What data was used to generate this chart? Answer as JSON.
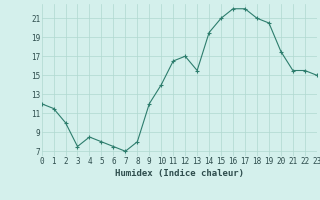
{
  "x": [
    0,
    1,
    2,
    3,
    4,
    5,
    6,
    7,
    8,
    9,
    10,
    11,
    12,
    13,
    14,
    15,
    16,
    17,
    18,
    19,
    20,
    21,
    22,
    23
  ],
  "y": [
    12,
    11.5,
    10,
    7.5,
    8.5,
    8,
    7.5,
    7,
    8,
    12,
    14,
    16.5,
    17,
    15.5,
    19.5,
    21,
    22,
    22,
    21,
    20.5,
    17.5,
    15.5,
    15.5,
    15
  ],
  "xlabel": "Humidex (Indice chaleur)",
  "xlim": [
    0,
    23
  ],
  "ylim": [
    6.5,
    22.5
  ],
  "yticks": [
    7,
    9,
    11,
    13,
    15,
    17,
    19,
    21
  ],
  "xtick_labels": [
    "0",
    "1",
    "2",
    "3",
    "4",
    "5",
    "6",
    "7",
    "8",
    "9",
    "10",
    "11",
    "12",
    "13",
    "14",
    "15",
    "16",
    "17",
    "18",
    "19",
    "20",
    "21",
    "22",
    "23"
  ],
  "line_color": "#2d7d6d",
  "marker": "+",
  "bg_color": "#d4f0ec",
  "grid_color": "#b0d8d0",
  "font_color": "#2e4d4d",
  "label_fontsize": 6.5,
  "tick_fontsize": 5.5
}
